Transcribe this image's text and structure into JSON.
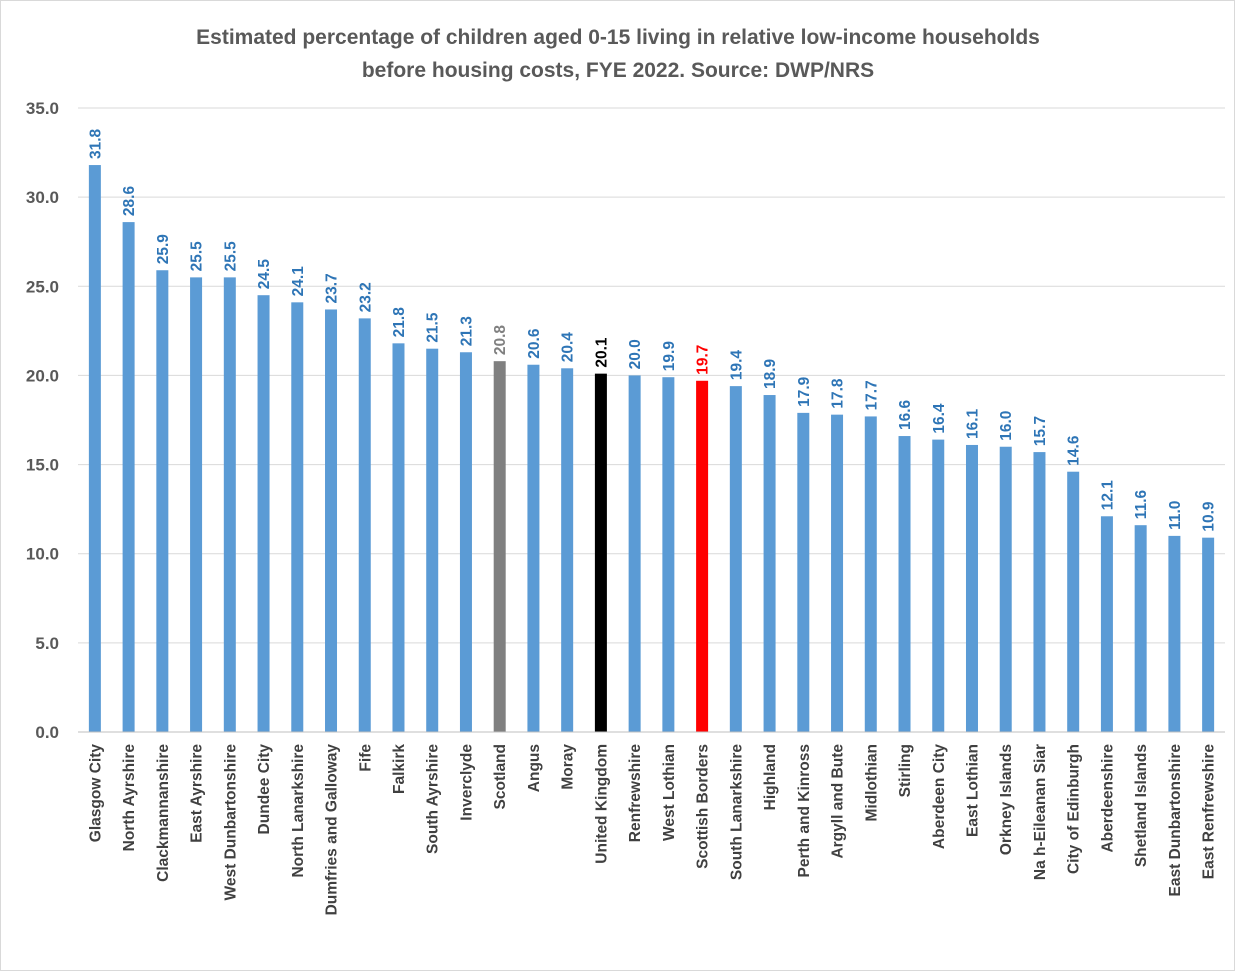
{
  "chart_data": {
    "type": "bar",
    "title_lines": [
      "Estimated percentage of children aged 0-15  living in relative low-income households",
      "before housing costs, FYE 2022.  Source: DWP/NRS"
    ],
    "xlabel": "",
    "ylabel": "",
    "ylim": [
      0,
      35
    ],
    "ytick_values": [
      0,
      5,
      10,
      15,
      20,
      25,
      30,
      35
    ],
    "ytick_labels": [
      "0.0",
      "5.0",
      "10.0",
      "15.0",
      "20.0",
      "25.0",
      "30.0",
      "35.0"
    ],
    "grid": true,
    "legend": "none",
    "colors": {
      "default_bar": "#5b9bd5",
      "default_label": "#2e75b6",
      "scotland": "#808080",
      "united_kingdom": "#000000",
      "scottish_borders": "#ff0000"
    },
    "categories": [
      "Glasgow City",
      "North Ayrshire",
      "Clackmannanshire",
      "East Ayrshire",
      "West Dunbartonshire",
      "Dundee City",
      "North Lanarkshire",
      "Dumfries and Galloway",
      "Fife",
      "Falkirk",
      "South Ayrshire",
      "Inverclyde",
      "Scotland",
      "Angus",
      "Moray",
      "United Kingdom",
      "Renfrewshire",
      "West Lothian",
      "Scottish Borders",
      "South Lanarkshire",
      "Highland",
      "Perth and Kinross",
      "Argyll and Bute",
      "Midlothian",
      "Stirling",
      "Aberdeen City",
      "East Lothian",
      "Orkney Islands",
      "Na h-Eileanan Siar",
      "City of Edinburgh",
      "Aberdeenshire",
      "Shetland Islands",
      "East Dunbartonshire",
      "East Renfrewshire"
    ],
    "values": [
      31.8,
      28.6,
      25.9,
      25.5,
      25.5,
      24.5,
      24.1,
      23.7,
      23.2,
      21.8,
      21.5,
      21.3,
      20.8,
      20.6,
      20.4,
      20.1,
      20.0,
      19.9,
      19.7,
      19.4,
      18.9,
      17.9,
      17.8,
      17.7,
      16.6,
      16.4,
      16.1,
      16.0,
      15.7,
      14.6,
      12.1,
      11.6,
      11.0,
      10.9
    ],
    "value_labels": [
      "31.8",
      "28.6",
      "25.9",
      "25.5",
      "25.5",
      "24.5",
      "24.1",
      "23.7",
      "23.2",
      "21.8",
      "21.5",
      "21.3",
      "20.8",
      "20.6",
      "20.4",
      "20.1",
      "20.0",
      "19.9",
      "19.7",
      "19.4",
      "18.9",
      "17.9",
      "17.8",
      "17.7",
      "16.6",
      "16.4",
      "16.1",
      "16.0",
      "15.7",
      "14.6",
      "12.1",
      "11.6",
      "11.0",
      "10.9"
    ],
    "bar_color_keys": [
      "default_bar",
      "default_bar",
      "default_bar",
      "default_bar",
      "default_bar",
      "default_bar",
      "default_bar",
      "default_bar",
      "default_bar",
      "default_bar",
      "default_bar",
      "default_bar",
      "scotland",
      "default_bar",
      "default_bar",
      "united_kingdom",
      "default_bar",
      "default_bar",
      "scottish_borders",
      "default_bar",
      "default_bar",
      "default_bar",
      "default_bar",
      "default_bar",
      "default_bar",
      "default_bar",
      "default_bar",
      "default_bar",
      "default_bar",
      "default_bar",
      "default_bar",
      "default_bar",
      "default_bar",
      "default_bar"
    ],
    "label_color_keys": [
      "default_label",
      "default_label",
      "default_label",
      "default_label",
      "default_label",
      "default_label",
      "default_label",
      "default_label",
      "default_label",
      "default_label",
      "default_label",
      "default_label",
      "scotland",
      "default_label",
      "default_label",
      "united_kingdom",
      "default_label",
      "default_label",
      "scottish_borders",
      "default_label",
      "default_label",
      "default_label",
      "default_label",
      "default_label",
      "default_label",
      "default_label",
      "default_label",
      "default_label",
      "default_label",
      "default_label",
      "default_label",
      "default_label",
      "default_label",
      "default_label"
    ]
  }
}
